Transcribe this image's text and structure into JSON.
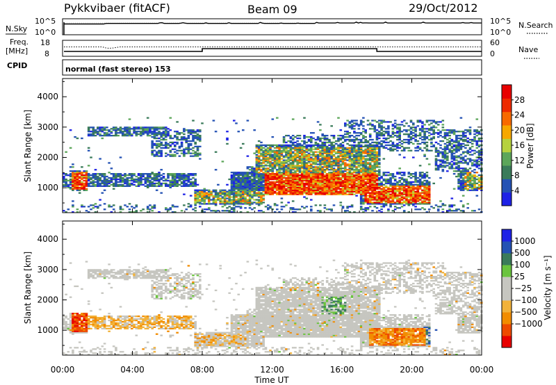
{
  "header": {
    "station": "Pykkvibaer (fitACF)",
    "beam": "Beam 09",
    "date": "29/Oct/2012"
  },
  "panels": {
    "nsky": {
      "label": "N.Sky",
      "ticks_left": [
        "10^5",
        "10^0"
      ],
      "ticks_right": [
        "10^5",
        "10^0"
      ],
      "right_label": "N.Search"
    },
    "freq": {
      "label_top": "Freq.",
      "label_unit": "[MHz]",
      "ticks_left": [
        "18",
        "8"
      ],
      "ticks_right": [
        "60",
        "0"
      ],
      "right_label": "Nave"
    },
    "cpid": {
      "label": "CPID",
      "value": "normal (fast stereo) 153"
    }
  },
  "colors": {
    "power": [
      "#1e22e6",
      "#2452b4",
      "#3a7b5a",
      "#5ca65a",
      "#b6d23e",
      "#f7a800",
      "#f86a00",
      "#ee2a00",
      "#e80000"
    ],
    "velocity": [
      "#e80000",
      "#ee4a00",
      "#f28c00",
      "#f2b23a",
      "#c6c6c0",
      "#c6c6c0",
      "#6ac43e",
      "#3a7b5a",
      "#2452b4",
      "#1e22e6"
    ],
    "ground": "#c6c6c0"
  },
  "chart_data": [
    {
      "type": "heatmap",
      "name": "power",
      "ylabel": "Slant Range [km]",
      "y_ticks": [
        "1000",
        "2000",
        "3000",
        "4000"
      ],
      "ylim": [
        180,
        4600
      ],
      "xlim_hours": [
        0,
        24
      ],
      "colorbar_label": "Power [dB]",
      "colorbar_ticks": [
        "4",
        "8",
        "12",
        "16",
        "20",
        "24",
        "28"
      ],
      "colorbar_range": [
        0,
        32
      ]
    },
    {
      "type": "heatmap",
      "name": "velocity",
      "ylabel": "Slant Range [km]",
      "y_ticks": [
        "1000",
        "2000",
        "3000",
        "4000"
      ],
      "ylim": [
        180,
        4600
      ],
      "xlim_hours": [
        0,
        24
      ],
      "colorbar_label": "Velocity [m s⁻¹]",
      "colorbar_ticks": [
        "1000",
        "500",
        "100",
        "25",
        "−25",
        "−100",
        "−500",
        "−1000"
      ]
    }
  ],
  "x_axis": {
    "ticks": [
      "00:00",
      "04:00",
      "08:00",
      "12:00",
      "16:00",
      "20:00",
      "00:00"
    ],
    "label": "Time UT"
  }
}
